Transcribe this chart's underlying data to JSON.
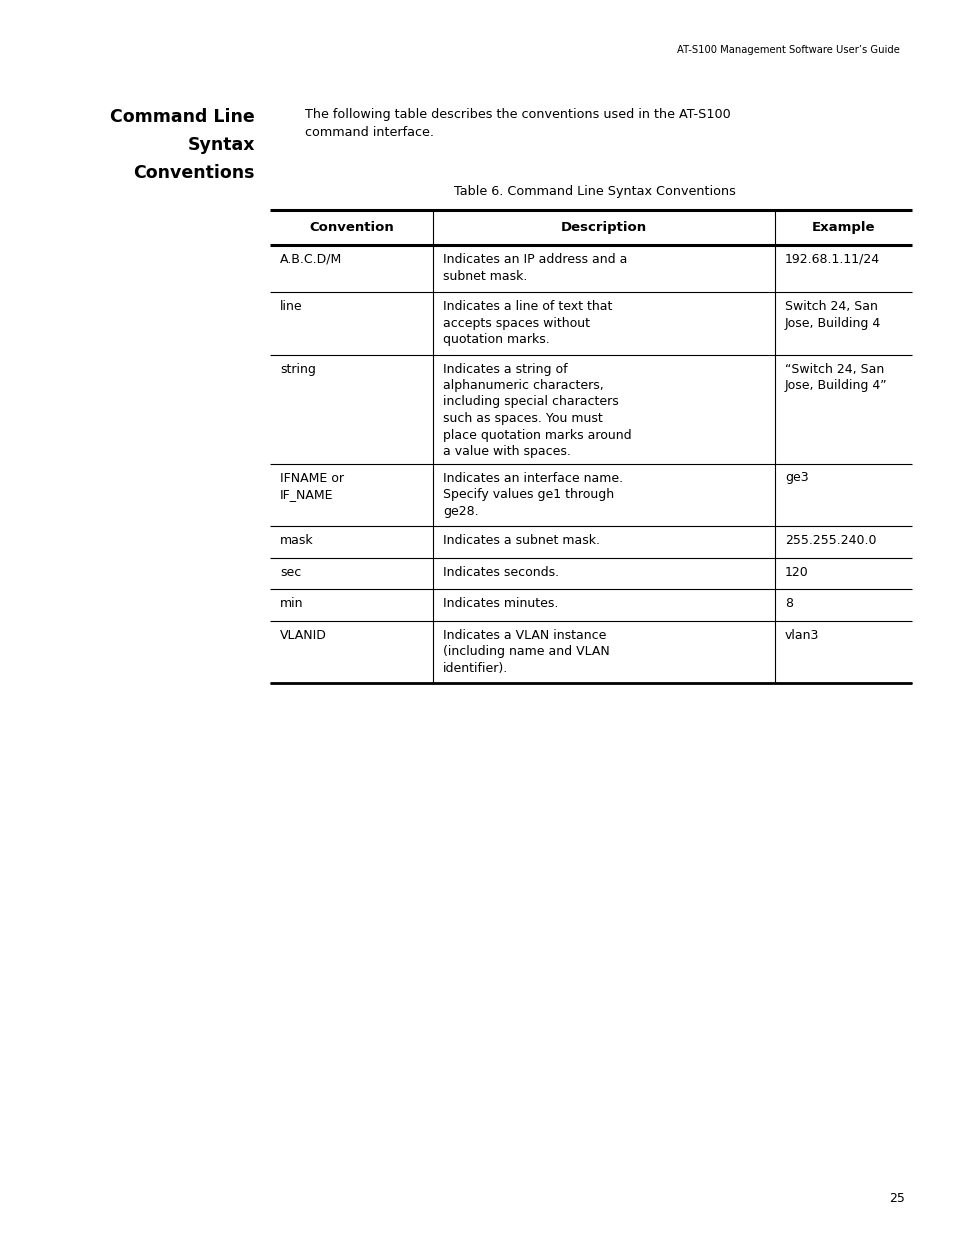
{
  "page_title": "AT-S100 Management Software User’s Guide",
  "page_number": "25",
  "section_title_lines": [
    "Command Line",
    "Syntax",
    "Conventions"
  ],
  "intro_text_lines": [
    "The following table describes the conventions used in the AT-S100",
    "command interface."
  ],
  "table_title": "Table 6. Command Line Syntax Conventions",
  "headers": [
    "Convention",
    "Description",
    "Example"
  ],
  "rows": [
    {
      "convention": "A.B.C.D/M",
      "description": "Indicates an IP address and a\nsubnet mask.",
      "example": "192.68.1.11/24"
    },
    {
      "convention": "line",
      "description": "Indicates a line of text that\naccepts spaces without\nquotation marks.",
      "example": "Switch 24, San\nJose, Building 4"
    },
    {
      "convention": "string",
      "description": "Indicates a string of\nalphanumeric characters,\nincluding special characters\nsuch as spaces. You must\nplace quotation marks around\na value with spaces.",
      "example": "“Switch 24, San\nJose, Building 4”"
    },
    {
      "convention": "IFNAME or\nIF_NAME",
      "description": "Indicates an interface name.\nSpecify values ge1 through\nge28.",
      "example": "ge3"
    },
    {
      "convention": "mask",
      "description": "Indicates a subnet mask.",
      "example": "255.255.240.0"
    },
    {
      "convention": "sec",
      "description": "Indicates seconds.",
      "example": "120"
    },
    {
      "convention": "min",
      "description": "Indicates minutes.",
      "example": "8"
    },
    {
      "convention": "VLANID",
      "description": "Indicates a VLAN instance\n(including name and VLAN\nidentifier).",
      "example": "vlan3"
    }
  ],
  "bg_color": "#ffffff",
  "text_color": "#000000"
}
